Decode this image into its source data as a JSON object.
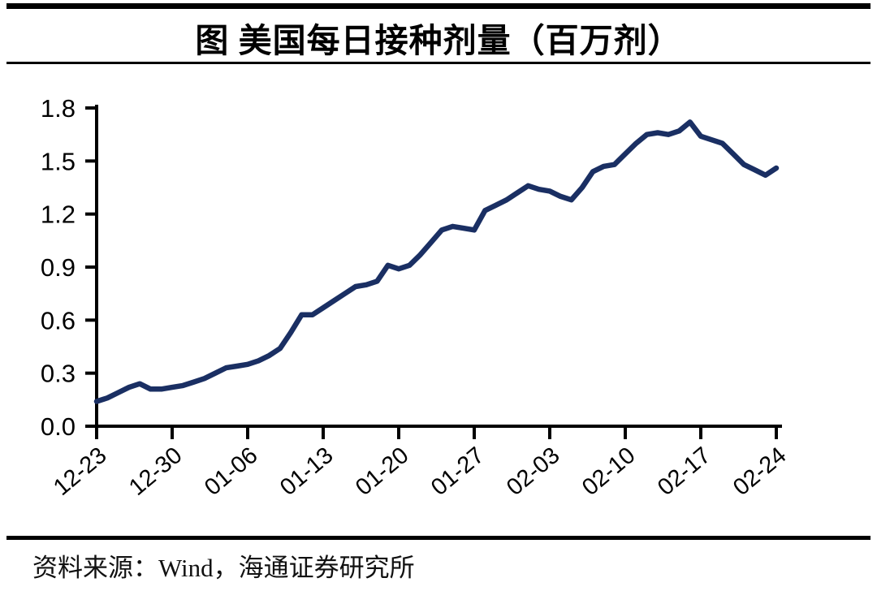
{
  "header": {
    "title": "图 美国每日接种剂量（百万剂）"
  },
  "footer": {
    "source": "资料来源：Wind，海通证券研究所"
  },
  "chart_data": {
    "type": "line",
    "title": "美国每日接种剂量（百万剂）",
    "x": [
      "12-23",
      "12-24",
      "12-25",
      "12-26",
      "12-27",
      "12-28",
      "12-29",
      "12-30",
      "12-31",
      "01-01",
      "01-02",
      "01-03",
      "01-04",
      "01-05",
      "01-06",
      "01-07",
      "01-08",
      "01-09",
      "01-10",
      "01-11",
      "01-12",
      "01-13",
      "01-14",
      "01-15",
      "01-16",
      "01-17",
      "01-18",
      "01-19",
      "01-20",
      "01-21",
      "01-22",
      "01-23",
      "01-24",
      "01-25",
      "01-26",
      "01-27",
      "01-28",
      "01-29",
      "01-30",
      "01-31",
      "02-01",
      "02-02",
      "02-03",
      "02-04",
      "02-05",
      "02-06",
      "02-07",
      "02-08",
      "02-09",
      "02-10",
      "02-11",
      "02-12",
      "02-13",
      "02-14",
      "02-15",
      "02-16",
      "02-17",
      "02-18",
      "02-19",
      "02-20",
      "02-21",
      "02-22",
      "02-23",
      "02-24"
    ],
    "values": [
      0.14,
      0.16,
      0.19,
      0.22,
      0.24,
      0.21,
      0.21,
      0.22,
      0.23,
      0.25,
      0.27,
      0.3,
      0.33,
      0.34,
      0.35,
      0.37,
      0.4,
      0.44,
      0.53,
      0.63,
      0.63,
      0.67,
      0.71,
      0.75,
      0.79,
      0.8,
      0.82,
      0.91,
      0.89,
      0.91,
      0.97,
      1.04,
      1.11,
      1.13,
      1.12,
      1.11,
      1.22,
      1.25,
      1.28,
      1.32,
      1.36,
      1.34,
      1.33,
      1.3,
      1.28,
      1.35,
      1.44,
      1.47,
      1.48,
      1.54,
      1.6,
      1.65,
      1.66,
      1.65,
      1.67,
      1.72,
      1.64,
      1.62,
      1.6,
      1.54,
      1.48,
      1.45,
      1.42,
      1.46
    ],
    "x_tick_labels": [
      "12-23",
      "12-30",
      "01-06",
      "01-13",
      "01-20",
      "01-27",
      "02-03",
      "02-10",
      "02-17",
      "02-24"
    ],
    "x_tick_every": 7,
    "y_ticks": [
      "0.0",
      "0.3",
      "0.6",
      "0.9",
      "1.2",
      "1.5",
      "1.8"
    ],
    "ylim": [
      0,
      1.8
    ],
    "grid": "off",
    "legend": "none",
    "line_color": "#1a2f63",
    "axis_color": "#000000"
  }
}
